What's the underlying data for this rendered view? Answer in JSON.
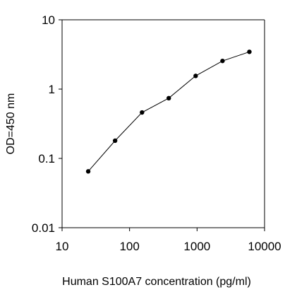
{
  "chart_data": {
    "type": "line",
    "title": "",
    "xlabel": "Human S100A7 concentration (pg/ml)",
    "ylabel": "OD=450 nm",
    "x_scale": "log",
    "y_scale": "log",
    "xlim": [
      10,
      10000
    ],
    "ylim": [
      0.01,
      10
    ],
    "x_ticks": [
      10,
      100,
      1000,
      10000
    ],
    "x_tick_labels": [
      "10",
      "100",
      "1000",
      "10000"
    ],
    "y_ticks": [
      0.01,
      0.1,
      1,
      10
    ],
    "y_tick_labels": [
      "0.01",
      "0.1",
      "1",
      "10"
    ],
    "grid": false,
    "legend": "none",
    "series": [
      {
        "x": [
          24.4,
          61,
          153,
          381,
          953,
          2383,
          5957
        ],
        "y": [
          0.065,
          0.18,
          0.46,
          0.74,
          1.55,
          2.55,
          3.45
        ],
        "color": "#000000",
        "marker": "circle"
      }
    ]
  }
}
